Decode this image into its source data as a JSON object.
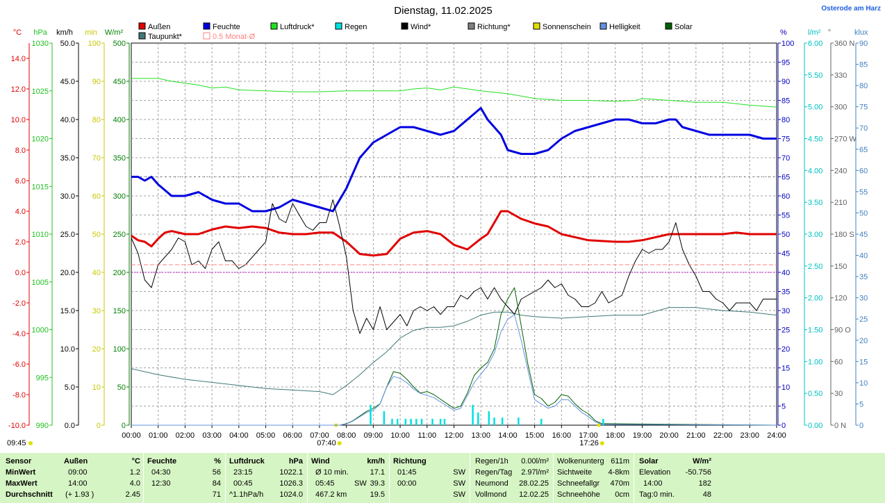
{
  "title": "Dienstag, 11.02.2025",
  "location": "Osterode am Harz",
  "legend": [
    {
      "label": "Außen",
      "color": "#e00000"
    },
    {
      "label": "Feuchte",
      "color": "#0000e0"
    },
    {
      "label": "Luftdruck*",
      "color": "#20e020"
    },
    {
      "label": "Regen",
      "color": "#00e0e0"
    },
    {
      "label": "Wind*",
      "color": "#000000"
    },
    {
      "label": "Richtung*",
      "color": "#808080"
    },
    {
      "label": "Sonnenschein",
      "color": "#e0e000"
    },
    {
      "label": "Helligkeit",
      "color": "#6090e0"
    },
    {
      "label": "Solar",
      "color": "#006000"
    },
    {
      "label": "Taupunkt*",
      "color": "#407878"
    },
    {
      "label": "0.5 Monat-Ø",
      "color": "#ff8080"
    }
  ],
  "axes": {
    "temp": {
      "unit": "°C",
      "color": "#e00000",
      "ticks": [
        "14.0",
        "12.0",
        "10.0",
        "8.0",
        "6.0",
        "4.0",
        "2.0",
        "0.0",
        "-2.0",
        "-4.0",
        "-6.0",
        "-8.0",
        "-10.0"
      ]
    },
    "pressure": {
      "unit": "hPa",
      "color": "#20c020",
      "ticks": [
        "1030",
        "1025",
        "1020",
        "1015",
        "1010",
        "1005",
        "1000",
        "995",
        "990"
      ]
    },
    "wind": {
      "unit": "km/h",
      "color": "#000000",
      "ticks": [
        "50.0",
        "45.0",
        "40.0",
        "35.0",
        "30.0",
        "25.0",
        "20.0",
        "15.0",
        "10.0",
        "5.0",
        "0.0"
      ]
    },
    "sunmin": {
      "unit": "min",
      "color": "#c8c800",
      "ticks": [
        "100",
        "90",
        "80",
        "70",
        "60",
        "50",
        "40",
        "30",
        "20",
        "10",
        "0"
      ]
    },
    "solar": {
      "unit": "W/m²",
      "color": "#008000",
      "ticks": [
        "500",
        "450",
        "400",
        "350",
        "300",
        "250",
        "200",
        "150",
        "100",
        "50",
        "0"
      ]
    },
    "humidity": {
      "unit": "%",
      "color": "#0000c0",
      "ticks": [
        "100",
        "95",
        "90",
        "85",
        "80",
        "75",
        "70",
        "65",
        "60",
        "55",
        "50",
        "45",
        "40",
        "35",
        "30",
        "25",
        "20",
        "15",
        "10",
        "5",
        "0"
      ]
    },
    "rain": {
      "unit": "l/m²",
      "color": "#00c0c0",
      "ticks": [
        "6.00",
        "5.50",
        "5.00",
        "4.50",
        "4.00",
        "3.50",
        "3.00",
        "2.50",
        "2.00",
        "1.50",
        "1.00",
        "0.50",
        "0.00"
      ]
    },
    "direction": {
      "unit": "°",
      "color": "#606060",
      "ticks": [
        "360 N",
        "330",
        "300",
        "270 W",
        "240",
        "210",
        "180 S",
        "150",
        "120",
        "90 O",
        "60",
        "30",
        "0 N"
      ]
    },
    "lux": {
      "unit": "klux",
      "color": "#4080c0",
      "ticks": [
        "90",
        "85",
        "80",
        "75",
        "70",
        "65",
        "60",
        "55",
        "50",
        "45",
        "40",
        "35",
        "30",
        "25",
        "20",
        "15",
        "10",
        "5",
        "0"
      ]
    },
    "x_ticks": [
      "00:00",
      "01:00",
      "02:00",
      "03:00",
      "04:00",
      "05:00",
      "06:00",
      "07:00",
      "08:00",
      "09:00",
      "10:00",
      "11:00",
      "12:00",
      "13:00",
      "14:00",
      "15:00",
      "16:00",
      "17:00",
      "18:00",
      "19:00",
      "20:00",
      "21:00",
      "22:00",
      "23:00",
      "24:00"
    ],
    "sunrise": "07:40",
    "sunset": "17:26",
    "left_time": "09:45"
  },
  "chart_data": {
    "type": "line",
    "title": "Dienstag, 11.02.2025",
    "x_unit": "hour",
    "xlim": [
      0,
      24
    ],
    "series": [
      {
        "name": "Außen",
        "unit": "°C",
        "ylim": [
          -10,
          15
        ],
        "x": [
          0,
          0.25,
          0.5,
          0.75,
          1,
          1.25,
          1.5,
          2,
          2.5,
          3,
          3.5,
          4,
          4.5,
          5,
          5.5,
          6,
          6.5,
          7,
          7.5,
          8,
          8.5,
          9,
          9.5,
          10,
          10.5,
          11,
          11.5,
          12,
          12.5,
          13,
          13.25,
          13.75,
          14,
          14.5,
          15,
          15.5,
          16,
          17,
          18,
          18.5,
          19,
          19.5,
          20,
          21,
          22,
          22.5,
          23,
          23.5,
          24
        ],
        "y": [
          2.4,
          2.1,
          2.0,
          1.7,
          2.2,
          2.6,
          2.7,
          2.5,
          2.5,
          2.8,
          3.0,
          2.9,
          3.0,
          2.9,
          2.6,
          2.5,
          2.5,
          2.6,
          2.6,
          2.0,
          1.2,
          1.1,
          1.2,
          2.2,
          2.6,
          2.7,
          2.5,
          1.8,
          1.5,
          2.2,
          2.5,
          4.0,
          4.0,
          3.5,
          3.2,
          3.0,
          2.5,
          2.1,
          2.0,
          2.0,
          2.1,
          2.3,
          2.5,
          2.5,
          2.5,
          2.6,
          2.5,
          2.5,
          2.5
        ]
      },
      {
        "name": "Feuchte",
        "unit": "%",
        "ylim": [
          0,
          100
        ],
        "x": [
          0,
          0.25,
          0.5,
          0.75,
          1,
          1.5,
          2,
          2.5,
          3,
          3.5,
          4,
          4.5,
          5,
          5.5,
          6,
          6.5,
          7,
          7.5,
          8,
          8.25,
          8.5,
          8.75,
          9,
          9.25,
          9.5,
          10,
          10.5,
          11,
          11.5,
          12,
          12.5,
          13,
          13.25,
          13.75,
          14,
          14.5,
          15,
          15.5,
          16,
          16.5,
          17,
          17.5,
          18,
          18.5,
          19,
          19.5,
          20,
          20.25,
          20.5,
          21,
          21.5,
          22,
          22.5,
          23,
          23.5,
          24
        ],
        "y": [
          65,
          65,
          64,
          65,
          63,
          60,
          60,
          61,
          59,
          58,
          58,
          56,
          56,
          57,
          59,
          58,
          57,
          56,
          62,
          66,
          70,
          72,
          74,
          75,
          76,
          78,
          78,
          77,
          76,
          77,
          80,
          83,
          80,
          76,
          72,
          71,
          71,
          72,
          75,
          77,
          78,
          79,
          80,
          80,
          79,
          79,
          80,
          80,
          78,
          77,
          76,
          76,
          76,
          76,
          75,
          75
        ]
      },
      {
        "name": "Luftdruck",
        "unit": "hPa",
        "ylim": [
          990,
          1030
        ],
        "x": [
          0,
          1,
          1.5,
          2,
          2.5,
          3,
          3.5,
          4,
          5,
          6,
          7,
          8,
          9,
          10,
          10.5,
          11,
          11.5,
          12,
          12.5,
          13,
          14,
          15,
          16,
          17,
          18,
          18.75,
          19,
          20,
          21,
          22,
          23,
          24
        ],
        "y": [
          1026.3,
          1026.3,
          1026.0,
          1025.8,
          1025.6,
          1025.3,
          1025.4,
          1025.1,
          1025.0,
          1024.9,
          1024.9,
          1025.0,
          1025.0,
          1025.0,
          1025.2,
          1025.3,
          1025.1,
          1025.4,
          1025.2,
          1025.0,
          1024.7,
          1024.2,
          1024.0,
          1024.0,
          1023.9,
          1024.0,
          1024.2,
          1024.0,
          1023.8,
          1023.8,
          1023.5,
          1023.3
        ]
      },
      {
        "name": "Taupunkt",
        "unit": "°C",
        "ylim": [
          -10,
          15
        ],
        "x": [
          0,
          1,
          2,
          3,
          4,
          5,
          6,
          7,
          7.5,
          8,
          8.5,
          9,
          9.5,
          10,
          10.5,
          11,
          11.5,
          12,
          12.5,
          13,
          13.5,
          14,
          14.5,
          15,
          16,
          17,
          18,
          19,
          20,
          21,
          22,
          23,
          24
        ],
        "y": [
          -6.3,
          -6.7,
          -7.0,
          -7.2,
          -7.4,
          -7.6,
          -7.7,
          -7.8,
          -8.0,
          -7.4,
          -6.7,
          -5.9,
          -5.2,
          -4.3,
          -3.8,
          -3.6,
          -3.6,
          -3.5,
          -3.2,
          -2.8,
          -2.6,
          -2.6,
          -2.8,
          -2.9,
          -3.0,
          -2.9,
          -2.8,
          -2.8,
          -2.3,
          -2.3,
          -2.5,
          -2.6,
          -2.8
        ]
      },
      {
        "name": "Wind",
        "unit": "km/h",
        "ylim": [
          0,
          50
        ],
        "x": [
          0,
          0.25,
          0.5,
          0.75,
          1,
          1.25,
          1.5,
          1.75,
          2,
          2.25,
          2.5,
          2.75,
          3,
          3.25,
          3.5,
          3.75,
          4,
          4.25,
          4.5,
          4.75,
          5,
          5.25,
          5.5,
          5.75,
          6,
          6.25,
          6.5,
          6.75,
          7,
          7.25,
          7.5,
          7.75,
          8,
          8.25,
          8.5,
          8.75,
          9,
          9.25,
          9.5,
          9.75,
          10,
          10.25,
          10.5,
          10.75,
          11,
          11.25,
          11.5,
          11.75,
          12,
          12.25,
          12.5,
          12.75,
          13,
          13.25,
          13.5,
          13.75,
          14,
          14.25,
          14.5,
          14.75,
          15,
          15.25,
          15.5,
          15.75,
          16,
          16.25,
          16.5,
          16.75,
          17,
          17.25,
          17.5,
          17.75,
          18,
          18.25,
          18.5,
          18.75,
          19,
          19.25,
          19.5,
          19.75,
          20,
          20.25,
          20.5,
          20.75,
          21,
          21.25,
          21.5,
          21.75,
          22,
          22.25,
          22.5,
          22.75,
          23,
          23.25,
          23.5,
          23.75,
          24
        ],
        "y": [
          24.5,
          22.5,
          19.0,
          18.0,
          21.0,
          22.0,
          23.0,
          24.5,
          24.0,
          21.0,
          21.5,
          20.5,
          23.0,
          24.0,
          21.5,
          21.5,
          20.5,
          21.0,
          22.0,
          23.0,
          24.0,
          29.0,
          27.0,
          26.5,
          29.0,
          27.5,
          26.0,
          25.5,
          26.5,
          26.5,
          29.5,
          26.0,
          22.0,
          15.0,
          12.0,
          14.0,
          12.5,
          15.5,
          12.5,
          13.5,
          14.5,
          13.0,
          15.0,
          15.5,
          15.0,
          15.5,
          14.5,
          15.5,
          15.5,
          17.0,
          16.5,
          17.5,
          18.0,
          16.5,
          18.0,
          16.5,
          15.5,
          14.5,
          16.5,
          17.0,
          17.5,
          18.0,
          19.0,
          18.0,
          18.5,
          17.0,
          16.5,
          15.5,
          15.5,
          16.0,
          17.5,
          16.0,
          16.5,
          17.0,
          19.5,
          21.5,
          23.0,
          22.5,
          23.0,
          23.0,
          24.0,
          26.5,
          23.0,
          21.0,
          19.5,
          17.5,
          17.5,
          16.5,
          16.0,
          15.0,
          16.0,
          16.0,
          16.0,
          15.0,
          16.5,
          16.5,
          16.5
        ]
      },
      {
        "name": "Solar",
        "unit": "W/m²",
        "ylim": [
          0,
          500
        ],
        "x": [
          0,
          7.75,
          8,
          8.25,
          8.5,
          8.75,
          9,
          9.25,
          9.5,
          9.75,
          10,
          10.25,
          10.5,
          10.75,
          11,
          11.25,
          11.5,
          11.75,
          12,
          12.25,
          12.5,
          12.75,
          13,
          13.25,
          13.5,
          13.75,
          14,
          14.25,
          14.5,
          14.75,
          15,
          15.25,
          15.5,
          15.75,
          16,
          16.25,
          16.5,
          16.75,
          17,
          17.25,
          17.5,
          24
        ],
        "y": [
          0,
          0,
          2,
          6,
          12,
          18,
          22,
          28,
          50,
          70,
          68,
          60,
          50,
          42,
          44,
          40,
          34,
          28,
          22,
          25,
          42,
          65,
          75,
          82,
          100,
          145,
          165,
          180,
          130,
          80,
          40,
          35,
          25,
          30,
          40,
          38,
          28,
          20,
          15,
          6,
          2,
          0
        ]
      },
      {
        "name": "Helligkeit",
        "unit": "klux",
        "ylim": [
          0,
          90
        ],
        "x": [
          0,
          7.75,
          8,
          8.25,
          8.5,
          8.75,
          9,
          9.25,
          9.5,
          9.75,
          10,
          10.25,
          10.5,
          10.75,
          11,
          11.25,
          11.5,
          11.75,
          12,
          12.25,
          12.5,
          12.75,
          13,
          13.25,
          13.5,
          13.75,
          14,
          14.25,
          14.5,
          14.75,
          15,
          15.25,
          15.5,
          15.75,
          16,
          16.25,
          16.5,
          16.75,
          17,
          17.25,
          17.5,
          24
        ],
        "y": [
          0,
          0,
          0.3,
          1,
          2,
          3,
          3.5,
          5,
          9,
          11.5,
          11,
          10,
          8.5,
          7.5,
          7,
          6.5,
          5.5,
          4.5,
          3.5,
          4,
          7,
          10,
          12,
          14,
          17,
          22,
          25,
          26,
          20,
          13,
          6,
          5,
          4,
          4.5,
          6,
          6,
          4.5,
          3,
          2,
          0.8,
          0.2,
          0
        ]
      },
      {
        "name": "Regen",
        "unit": "l/m²",
        "ylim": [
          0,
          6
        ],
        "x": [
          8.9,
          9.4,
          9.7,
          9.9,
          10.2,
          10.4,
          10.6,
          10.8,
          11.2,
          11.5,
          11.65,
          12.7,
          12.9,
          13.3,
          13.5,
          13.8,
          14.4,
          15.25,
          17.55
        ],
        "y": [
          0.32,
          0.22,
          0.1,
          0.1,
          0.1,
          0.1,
          0.1,
          0.1,
          0.1,
          0.1,
          0.1,
          0.32,
          0.2,
          0.22,
          0.12,
          0.12,
          0.12,
          0.1,
          0.1
        ]
      },
      {
        "name": "0.5 Monat-Ø",
        "unit": "°C",
        "ylim": [
          -10,
          15
        ],
        "x": [
          0,
          24
        ],
        "y": [
          0.5,
          0.5
        ]
      }
    ],
    "reference_lines": [
      {
        "name": "humidity-dotted",
        "unit": "%",
        "y": 65
      },
      {
        "name": "zero-degrees",
        "unit": "°C",
        "y": 0.0
      }
    ]
  },
  "stats": {
    "sensor": {
      "header": "Sensor",
      "rows": [
        "MinWert",
        "MaxWert",
        "Durchschnitt"
      ]
    },
    "aussen": {
      "header": "Außen",
      "unit": "°C",
      "rows": [
        [
          "09:00",
          "1.2"
        ],
        [
          "14:00",
          "4.0"
        ],
        [
          "(+ 1.93 )",
          "2.45"
        ]
      ]
    },
    "feuchte": {
      "header": "Feuchte",
      "unit": "%",
      "rows": [
        [
          "04:30",
          "56"
        ],
        [
          "12:30",
          "84"
        ],
        [
          "",
          "71"
        ]
      ]
    },
    "luftdruck": {
      "header": "Luftdruck",
      "unit": "hPa",
      "rows": [
        [
          "23:15",
          "1022.1"
        ],
        [
          "00:45",
          "1026.3"
        ],
        [
          "^1.1hPa/h",
          "1024.0"
        ]
      ]
    },
    "wind": {
      "header": "Wind",
      "unit": "km/h",
      "rows": [
        [
          "Ø 10 min.",
          "",
          "17.1"
        ],
        [
          "05:45",
          "SW",
          "39.3"
        ],
        [
          "467.2 km",
          "",
          "19.5"
        ]
      ]
    },
    "richtung": {
      "header": "Richtung",
      "rows": [
        [
          "01:45",
          "SW"
        ],
        [
          "00:00",
          "SW"
        ],
        [
          "",
          "SW"
        ]
      ]
    },
    "regen": {
      "rows": [
        [
          "Regen/1h",
          "0.00l/m²"
        ],
        [
          "Regen/Tag",
          "2.97l/m²"
        ],
        [
          "Neumond",
          "28.02.25"
        ],
        [
          "Vollmond",
          "12.02.25"
        ]
      ]
    },
    "wolken": {
      "rows": [
        [
          "Wolkenunterg",
          "611m"
        ],
        [
          "Sichtweite",
          "4-8km"
        ],
        [
          "Schneefallgr",
          "470m"
        ],
        [
          "Schneehöhe",
          "0cm"
        ]
      ]
    },
    "solar": {
      "header": "Solar",
      "unit": "W/m²",
      "rows": [
        [
          "Elevation",
          "-50.756"
        ],
        [
          "14:00",
          "182"
        ],
        [
          "Tag:0 min.",
          "48"
        ]
      ]
    }
  }
}
